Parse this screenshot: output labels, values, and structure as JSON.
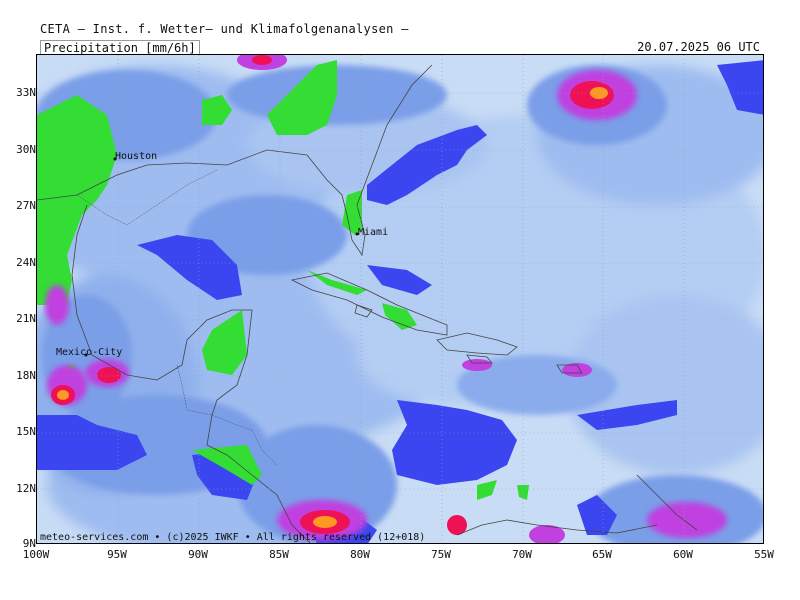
{
  "header": {
    "title": "CETA — Inst. f. Wetter— und Klimafolgenanalysen —",
    "parameter": "Precipitation [mm/6h]",
    "valid_time": "20.07.2025 06 UTC"
  },
  "axes": {
    "lat_labels": [
      "33N",
      "30N",
      "27N",
      "24N",
      "21N",
      "18N",
      "15N",
      "12N",
      "9N"
    ],
    "lon_labels": [
      "100W",
      "95W",
      "90W",
      "85W",
      "80W",
      "75W",
      "70W",
      "65W",
      "60W",
      "55W"
    ]
  },
  "cities": [
    {
      "name": "Houston"
    },
    {
      "name": "Miami"
    },
    {
      "name": "Mexico-City"
    }
  ],
  "credit": "meteo-services.com • (c)2025 IWKF • All rights reserved (12+018)",
  "colors": {
    "ocean_light": "#c9dcf5",
    "precip_1": "#9ebcf0",
    "precip_2": "#7a9ee8",
    "precip_3": "#3b46f0",
    "land_green": "#33dd33",
    "heavy_magenta": "#c040e0",
    "heavy_red": "#ee1155",
    "heavy_orange": "#ff9922"
  }
}
